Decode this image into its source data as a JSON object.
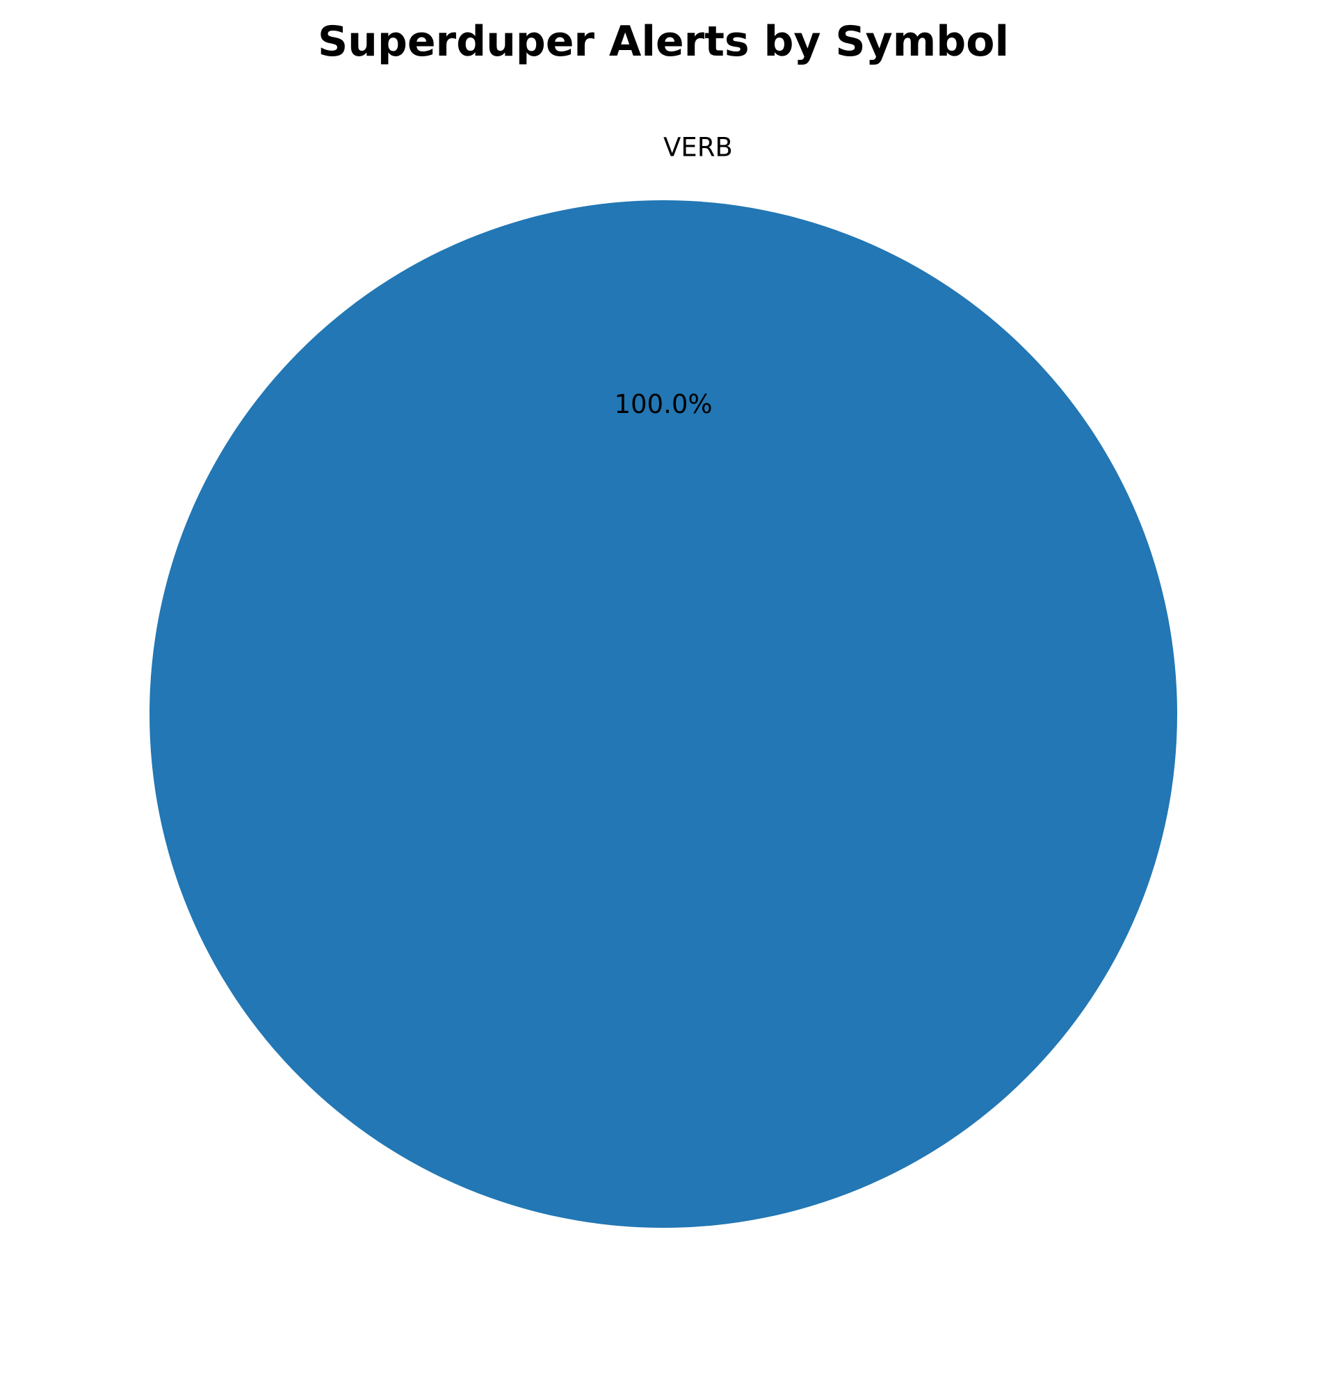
{
  "chart_data": {
    "type": "pie",
    "title": "Superduper Alerts by Symbol",
    "categories": [
      "VERB"
    ],
    "values": [
      100
    ],
    "percent_labels": [
      "100.0%"
    ],
    "colors": [
      "#2277b4"
    ],
    "legend": "none"
  }
}
